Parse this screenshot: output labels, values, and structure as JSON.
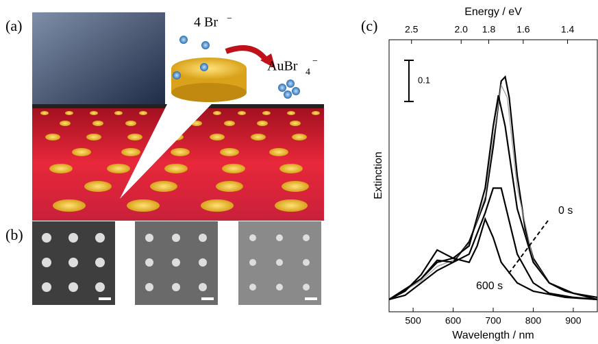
{
  "panels": {
    "a": {
      "label": "(a)",
      "reactant": "4 Br",
      "reactant_charge": "−",
      "product": "AuBr",
      "product_index": "4",
      "product_charge": "−"
    },
    "b": {
      "label": "(b)"
    }
  },
  "chart_data": {
    "type": "line",
    "label": "(c)",
    "xlabel": "Wavelength / nm",
    "ylabel": "Extinction",
    "x2label": "Energy / eV",
    "xlim": [
      440,
      960
    ],
    "xticks": [
      500,
      600,
      700,
      800,
      900
    ],
    "x2ticks": [
      2.5,
      {
        "value": 2,
        "label": "2.0"
      },
      1.8,
      1.6,
      1.4
    ],
    "ylim": [
      0,
      0.66
    ],
    "scalebar": 0.1,
    "series": [
      {
        "name": "0 s",
        "color": "#000000",
        "x": [
          440,
          480,
          520,
          560,
          600,
          640,
          680,
          700,
          720,
          730,
          740,
          760,
          780,
          800,
          840,
          880,
          920,
          960
        ],
        "values": [
          0.03,
          0.04,
          0.07,
          0.1,
          0.12,
          0.17,
          0.27,
          0.4,
          0.56,
          0.57,
          0.52,
          0.33,
          0.2,
          0.13,
          0.07,
          0.05,
          0.04,
          0.03
        ]
      },
      {
        "color": "#999999",
        "x": [
          440,
          520,
          560,
          600,
          640,
          680,
          700,
          720,
          735,
          760,
          800,
          840,
          900,
          960
        ],
        "values": [
          0.03,
          0.075,
          0.11,
          0.125,
          0.165,
          0.28,
          0.42,
          0.55,
          0.52,
          0.3,
          0.125,
          0.07,
          0.045,
          0.035
        ]
      },
      {
        "color": "#000000",
        "x": [
          440,
          520,
          560,
          600,
          640,
          680,
          700,
          713,
          730,
          760,
          800,
          840,
          900,
          960
        ],
        "values": [
          0.03,
          0.08,
          0.12,
          0.13,
          0.16,
          0.3,
          0.45,
          0.525,
          0.45,
          0.25,
          0.12,
          0.07,
          0.045,
          0.035
        ]
      },
      {
        "color": "#000000",
        "x": [
          440,
          520,
          560,
          600,
          640,
          660,
          680,
          700,
          720,
          760,
          800,
          840,
          900,
          960
        ],
        "values": [
          0.03,
          0.08,
          0.125,
          0.12,
          0.14,
          0.19,
          0.24,
          0.3,
          0.3,
          0.14,
          0.07,
          0.045,
          0.035,
          0.03
        ]
      },
      {
        "name": "600 s",
        "color": "#000000",
        "x": [
          440,
          480,
          520,
          560,
          600,
          640,
          660,
          680,
          700,
          720,
          760,
          800,
          880,
          960
        ],
        "values": [
          0.03,
          0.05,
          0.09,
          0.15,
          0.13,
          0.12,
          0.16,
          0.225,
          0.18,
          0.12,
          0.07,
          0.05,
          0.035,
          0.03
        ]
      }
    ]
  }
}
